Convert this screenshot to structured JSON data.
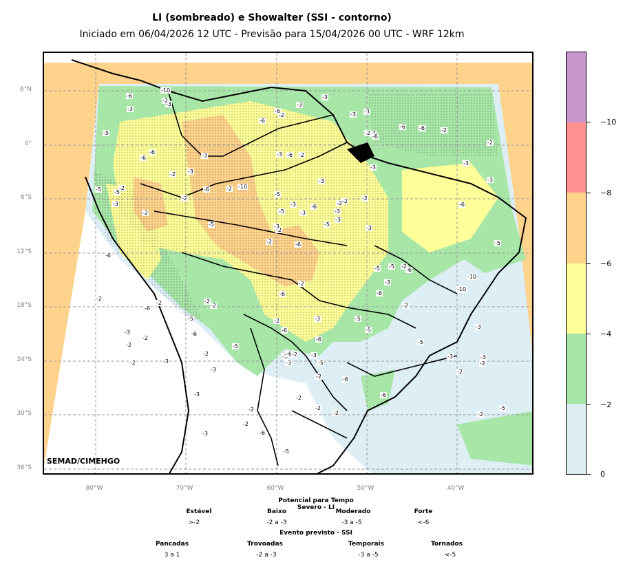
{
  "title": "LI (sombreado) e Showalter (SSI - contorno)",
  "subtitle": "Iniciado em 06/04/2026 12 UTC - Previsão para 15/04/2026 00 UTC - WRF 12km",
  "credit": "SEMAD/CIMEHGO",
  "axes": {
    "lat_labels": [
      "6°N",
      "0°",
      "6°S",
      "12°S",
      "18°S",
      "24°S",
      "30°S",
      "36°S"
    ],
    "lon_labels": [
      "80°W",
      "70°W",
      "60°W",
      "50°W",
      "40°W"
    ]
  },
  "colorbar": {
    "colors": [
      "#ddeef5",
      "#a8e6a8",
      "#ffff99",
      "#ffd38c",
      "#ff9090",
      "#c995cc"
    ],
    "tick_labels": [
      "0",
      "−2",
      "−4",
      "−6",
      "−8",
      "−10"
    ]
  },
  "legend": {
    "li_title": "Potencial para Tempo Severo - LI",
    "li_categories": [
      {
        "name": "Estável",
        "range": ">-2"
      },
      {
        "name": "Baixo",
        "range": "-2 a -3"
      },
      {
        "name": "Moderado",
        "range": "-3 a -5"
      },
      {
        "name": "Forte",
        "range": "<-6"
      }
    ],
    "ssi_title": "Evento previsto - SSI",
    "ssi_categories": [
      {
        "name": "Pancadas",
        "range": "3 a 1"
      },
      {
        "name": "Trovoadas",
        "range": "-2 a -3"
      },
      {
        "name": "Temporais",
        "range": "-3 a -5"
      },
      {
        "name": "Tornados",
        "range": "<-5"
      }
    ]
  },
  "contour_labels": [
    "-6",
    "-6",
    "-2",
    "-2",
    "-2",
    "-2",
    "-3",
    "-2",
    "-3",
    "-5",
    "-3",
    "-3",
    "-2",
    "-2",
    "-2",
    "-3",
    "-3",
    "-3",
    "-3",
    "-2",
    "-10",
    "-2",
    "-6",
    "-6",
    "-2",
    "-6",
    "-6",
    "-2",
    "-3",
    "-5",
    "-3",
    "-3",
    "-2",
    "-5",
    "-3",
    "-6",
    "-2",
    "-3",
    "-3",
    "-2",
    "-3",
    "-2",
    "-2",
    "-6",
    "-2",
    "-5",
    "-3",
    "-2",
    "-6",
    "-3",
    "-6",
    "-3",
    "-5",
    "-3",
    "-5",
    "-5",
    "-2",
    "-6",
    "-3",
    "-2",
    "-3",
    "-5",
    "-2",
    "-3",
    "-6",
    "-10",
    "-3",
    "-6",
    "-3",
    "-2",
    "-6",
    "-5",
    "-5",
    "-6",
    "-3",
    "-3",
    "-2",
    "-6",
    "-5",
    "-6",
    "-6",
    "-2",
    "-3",
    "-10",
    "-3",
    "-6",
    "-2",
    "-5",
    "-5",
    "-5",
    "-6",
    "-5",
    "-2",
    "-2",
    "-3",
    "-10",
    "-5",
    "-3",
    "-2",
    "-6",
    "-2",
    "-6",
    "-5",
    "-3",
    "-2",
    "-6",
    "-5",
    "-6",
    "-2",
    "-2",
    "-2",
    "-3",
    "-6",
    "-2",
    "-2",
    "-3",
    "-2",
    "-2",
    "-2",
    "-3"
  ]
}
